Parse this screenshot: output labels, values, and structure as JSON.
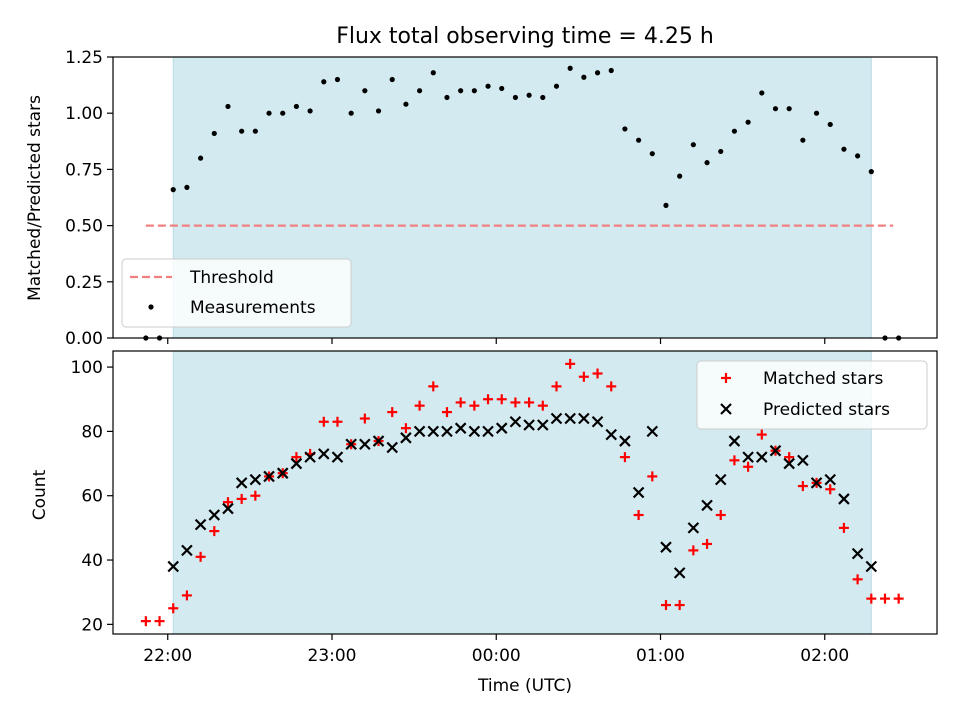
{
  "chart_data": [
    {
      "type": "scatter",
      "title": "Flux total observing time = 4.25 h",
      "xlabel": "",
      "ylabel": "Matched/Predicted stars",
      "ylim": [
        0,
        1.25
      ],
      "y_ticks": [
        0.0,
        0.25,
        0.5,
        0.75,
        1.0,
        1.25
      ],
      "y_tick_labels": [
        "0.00",
        "0.25",
        "0.50",
        "0.75",
        "1.00",
        "1.25"
      ],
      "x_ticks": [
        "22:00",
        "23:00",
        "00:00",
        "01:00",
        "02:00"
      ],
      "observing_window": [
        "22:02",
        "02:17"
      ],
      "threshold": {
        "name": "Threshold",
        "y": 0.5,
        "x": [
          "21:52",
          "02:25"
        ],
        "color": "#f08080"
      },
      "series": [
        {
          "name": "Measurements",
          "color": "#000000",
          "x": [
            "21:52",
            "21:57",
            "22:02",
            "22:07",
            "22:12",
            "22:17",
            "22:22",
            "22:27",
            "22:32",
            "22:37",
            "22:42",
            "22:47",
            "22:52",
            "22:57",
            "23:02",
            "23:07",
            "23:12",
            "23:17",
            "23:22",
            "23:27",
            "23:32",
            "23:37",
            "23:42",
            "23:47",
            "23:52",
            "23:57",
            "00:02",
            "00:07",
            "00:12",
            "00:17",
            "00:22",
            "00:27",
            "00:32",
            "00:37",
            "00:42",
            "00:47",
            "00:52",
            "00:57",
            "01:02",
            "01:07",
            "01:12",
            "01:17",
            "01:22",
            "01:27",
            "01:32",
            "01:37",
            "01:42",
            "01:47",
            "01:52",
            "01:57",
            "02:02",
            "02:07",
            "02:12",
            "02:17",
            "02:22",
            "02:27"
          ],
          "y": [
            0.0,
            0.0,
            0.66,
            0.67,
            0.8,
            0.91,
            1.03,
            0.92,
            0.92,
            1.0,
            1.0,
            1.03,
            1.01,
            1.14,
            1.15,
            1.0,
            1.1,
            1.01,
            1.15,
            1.04,
            1.1,
            1.18,
            1.07,
            1.1,
            1.1,
            1.12,
            1.11,
            1.07,
            1.08,
            1.07,
            1.12,
            1.2,
            1.16,
            1.18,
            1.19,
            0.93,
            0.88,
            0.82,
            0.59,
            0.72,
            0.86,
            0.78,
            0.83,
            0.92,
            0.96,
            1.09,
            1.02,
            1.02,
            0.88,
            1.0,
            0.95,
            0.84,
            0.81,
            0.74,
            0.0,
            0.0
          ]
        }
      ],
      "legend": {
        "placement": "lower-left",
        "entries": [
          "Threshold",
          "Measurements"
        ]
      },
      "background_color": "#d3eaf0"
    },
    {
      "type": "scatter",
      "title": "",
      "xlabel": "Time (UTC)",
      "ylabel": "Count",
      "ylim": [
        17,
        105
      ],
      "y_ticks": [
        20,
        40,
        60,
        80,
        100
      ],
      "y_tick_labels": [
        "20",
        "40",
        "60",
        "80",
        "100"
      ],
      "x_ticks": [
        "22:00",
        "23:00",
        "00:00",
        "01:00",
        "02:00"
      ],
      "observing_window": [
        "22:02",
        "02:17"
      ],
      "series": [
        {
          "name": "Matched stars",
          "marker": "plus",
          "color": "#ff0000",
          "x": [
            "21:52",
            "21:57",
            "22:02",
            "22:07",
            "22:12",
            "22:17",
            "22:22",
            "22:27",
            "22:32",
            "22:37",
            "22:42",
            "22:47",
            "22:52",
            "22:57",
            "23:02",
            "23:07",
            "23:12",
            "23:17",
            "23:22",
            "23:27",
            "23:32",
            "23:37",
            "23:42",
            "23:47",
            "23:52",
            "23:57",
            "00:02",
            "00:07",
            "00:12",
            "00:17",
            "00:22",
            "00:27",
            "00:32",
            "00:37",
            "00:42",
            "00:47",
            "00:52",
            "00:57",
            "01:02",
            "01:07",
            "01:12",
            "01:17",
            "01:22",
            "01:27",
            "01:32",
            "01:37",
            "01:42",
            "01:47",
            "01:52",
            "01:57",
            "02:02",
            "02:07",
            "02:12",
            "02:17",
            "02:22",
            "02:27"
          ],
          "y": [
            21,
            21,
            25,
            29,
            41,
            49,
            58,
            59,
            60,
            66,
            67,
            72,
            73,
            83,
            83,
            76,
            84,
            77,
            86,
            81,
            88,
            94,
            86,
            89,
            88,
            90,
            90,
            89,
            89,
            88,
            94,
            101,
            97,
            98,
            94,
            72,
            54,
            66,
            26,
            26,
            43,
            45,
            54,
            71,
            69,
            79,
            74,
            72,
            63,
            64,
            62,
            50,
            34,
            28,
            28,
            28
          ]
        },
        {
          "name": "Predicted stars",
          "marker": "x",
          "color": "#000000",
          "x": [
            "22:02",
            "22:07",
            "22:12",
            "22:17",
            "22:22",
            "22:27",
            "22:32",
            "22:37",
            "22:42",
            "22:47",
            "22:52",
            "22:57",
            "23:02",
            "23:07",
            "23:12",
            "23:17",
            "23:22",
            "23:27",
            "23:32",
            "23:37",
            "23:42",
            "23:47",
            "23:52",
            "23:57",
            "00:02",
            "00:07",
            "00:12",
            "00:17",
            "00:22",
            "00:27",
            "00:32",
            "00:37",
            "00:42",
            "00:47",
            "00:52",
            "00:57",
            "01:02",
            "01:07",
            "01:12",
            "01:17",
            "01:22",
            "01:27",
            "01:32",
            "01:37",
            "01:42",
            "01:47",
            "01:52",
            "01:57",
            "02:02",
            "02:07",
            "02:12",
            "02:17"
          ],
          "y": [
            38,
            43,
            51,
            54,
            56,
            64,
            65,
            66,
            67,
            70,
            72,
            73,
            72,
            76,
            76,
            77,
            75,
            78,
            80,
            80,
            80,
            81,
            80,
            80,
            81,
            83,
            82,
            82,
            84,
            84,
            84,
            83,
            79,
            77,
            61,
            80,
            44,
            36,
            50,
            57,
            65,
            77,
            72,
            72,
            74,
            70,
            71,
            64,
            65,
            59,
            42,
            38
          ]
        }
      ],
      "legend": {
        "placement": "top-right",
        "entries": [
          "Matched stars",
          "Predicted stars"
        ]
      },
      "background_color": "#d3eaf0"
    }
  ]
}
